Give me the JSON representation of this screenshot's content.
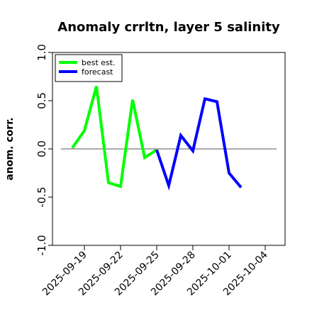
{
  "chart_data": {
    "type": "line",
    "title": "Anomaly crrltn, layer 5 salinity",
    "ylabel": "anom. corr.",
    "xlabel": "",
    "ylim": [
      -1.0,
      1.0
    ],
    "yticks": [
      "-1.0",
      "-0.5",
      "0.0",
      "0.5",
      "1.0"
    ],
    "ytick_values": [
      -1.0,
      -0.5,
      0.0,
      0.5,
      1.0
    ],
    "x_range": [
      "2025-09-18",
      "2025-10-05"
    ],
    "xticks": [
      "2025-09-19",
      "2025-09-22",
      "2025-09-25",
      "2025-09-28",
      "2025-10-01",
      "2025-10-04"
    ],
    "highlight_tick": "2025-09-25",
    "highlight_color": "#228b22",
    "reference_line": 0.0,
    "legend_position": "top-left",
    "series": [
      {
        "name": "best est.",
        "color": "#00ff00",
        "points": [
          {
            "x": "2025-09-18",
            "y": 0.01
          },
          {
            "x": "2025-09-19",
            "y": 0.19
          },
          {
            "x": "2025-09-20",
            "y": 0.65
          },
          {
            "x": "2025-09-21",
            "y": -0.35
          },
          {
            "x": "2025-09-22",
            "y": -0.39
          },
          {
            "x": "2025-09-23",
            "y": 0.51
          },
          {
            "x": "2025-09-24",
            "y": -0.09
          },
          {
            "x": "2025-09-25",
            "y": -0.01
          }
        ]
      },
      {
        "name": "forecast",
        "color": "#0000ff",
        "points": [
          {
            "x": "2025-09-25",
            "y": -0.01
          },
          {
            "x": "2025-09-26",
            "y": -0.38
          },
          {
            "x": "2025-09-27",
            "y": 0.14
          },
          {
            "x": "2025-09-28",
            "y": -0.02
          },
          {
            "x": "2025-09-29",
            "y": 0.52
          },
          {
            "x": "2025-09-30",
            "y": 0.49
          },
          {
            "x": "2025-10-01",
            "y": -0.25
          },
          {
            "x": "2025-10-02",
            "y": -0.4
          }
        ]
      }
    ]
  }
}
